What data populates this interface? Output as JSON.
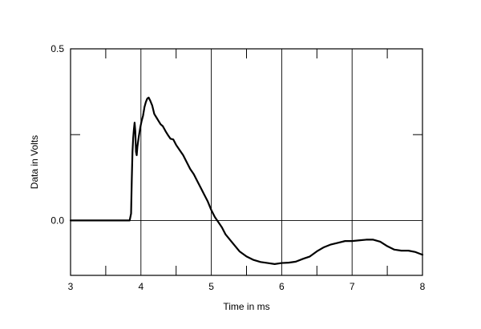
{
  "chart_data": {
    "type": "line",
    "title": "",
    "xlabel": "Time in ms",
    "ylabel": "Data in Volts",
    "xlim": [
      3,
      8
    ],
    "ylim": [
      -0.16,
      0.5
    ],
    "x_ticks": [
      3,
      4,
      5,
      6,
      7,
      8
    ],
    "x_tick_labels": [
      "3",
      "4",
      "5",
      "6",
      "7",
      "8"
    ],
    "y_ticks": [
      0.0,
      0.5
    ],
    "y_tick_labels": [
      "0.0",
      "0.5"
    ],
    "grid": "vertical lines at each ms, horizontal zero line",
    "legend": "none",
    "colors": {
      "line": "#000000",
      "grid": "#000000",
      "background": "#ffffff"
    },
    "series": [
      {
        "values_xy": [
          [
            3.0,
            0.0
          ],
          [
            3.5,
            0.0
          ],
          [
            3.84,
            0.0
          ],
          [
            3.86,
            0.02
          ],
          [
            3.87,
            0.12
          ],
          [
            3.88,
            0.2
          ],
          [
            3.89,
            0.24
          ],
          [
            3.9,
            0.265
          ],
          [
            3.91,
            0.285
          ],
          [
            3.92,
            0.26
          ],
          [
            3.93,
            0.2
          ],
          [
            3.94,
            0.19
          ],
          [
            3.95,
            0.215
          ],
          [
            3.97,
            0.245
          ],
          [
            3.99,
            0.27
          ],
          [
            4.01,
            0.29
          ],
          [
            4.03,
            0.305
          ],
          [
            4.05,
            0.33
          ],
          [
            4.07,
            0.345
          ],
          [
            4.09,
            0.355
          ],
          [
            4.11,
            0.358
          ],
          [
            4.13,
            0.35
          ],
          [
            4.16,
            0.335
          ],
          [
            4.19,
            0.31
          ],
          [
            4.22,
            0.3
          ],
          [
            4.25,
            0.29
          ],
          [
            4.28,
            0.28
          ],
          [
            4.31,
            0.275
          ],
          [
            4.35,
            0.26
          ],
          [
            4.38,
            0.25
          ],
          [
            4.42,
            0.238
          ],
          [
            4.46,
            0.236
          ],
          [
            4.5,
            0.22
          ],
          [
            4.55,
            0.205
          ],
          [
            4.6,
            0.19
          ],
          [
            4.65,
            0.17
          ],
          [
            4.7,
            0.15
          ],
          [
            4.75,
            0.135
          ],
          [
            4.8,
            0.115
          ],
          [
            4.85,
            0.095
          ],
          [
            4.9,
            0.075
          ],
          [
            4.95,
            0.055
          ],
          [
            5.0,
            0.03
          ],
          [
            5.05,
            0.01
          ],
          [
            5.1,
            -0.005
          ],
          [
            5.15,
            -0.02
          ],
          [
            5.2,
            -0.04
          ],
          [
            5.3,
            -0.065
          ],
          [
            5.4,
            -0.09
          ],
          [
            5.5,
            -0.105
          ],
          [
            5.6,
            -0.115
          ],
          [
            5.7,
            -0.121
          ],
          [
            5.8,
            -0.124
          ],
          [
            5.9,
            -0.127
          ],
          [
            6.0,
            -0.124
          ],
          [
            6.1,
            -0.123
          ],
          [
            6.2,
            -0.12
          ],
          [
            6.3,
            -0.112
          ],
          [
            6.4,
            -0.105
          ],
          [
            6.5,
            -0.09
          ],
          [
            6.6,
            -0.078
          ],
          [
            6.7,
            -0.07
          ],
          [
            6.8,
            -0.065
          ],
          [
            6.9,
            -0.06
          ],
          [
            7.0,
            -0.06
          ],
          [
            7.1,
            -0.058
          ],
          [
            7.2,
            -0.056
          ],
          [
            7.3,
            -0.056
          ],
          [
            7.4,
            -0.062
          ],
          [
            7.5,
            -0.075
          ],
          [
            7.6,
            -0.085
          ],
          [
            7.7,
            -0.088
          ],
          [
            7.8,
            -0.088
          ],
          [
            7.9,
            -0.092
          ],
          [
            8.0,
            -0.1
          ]
        ]
      }
    ]
  }
}
